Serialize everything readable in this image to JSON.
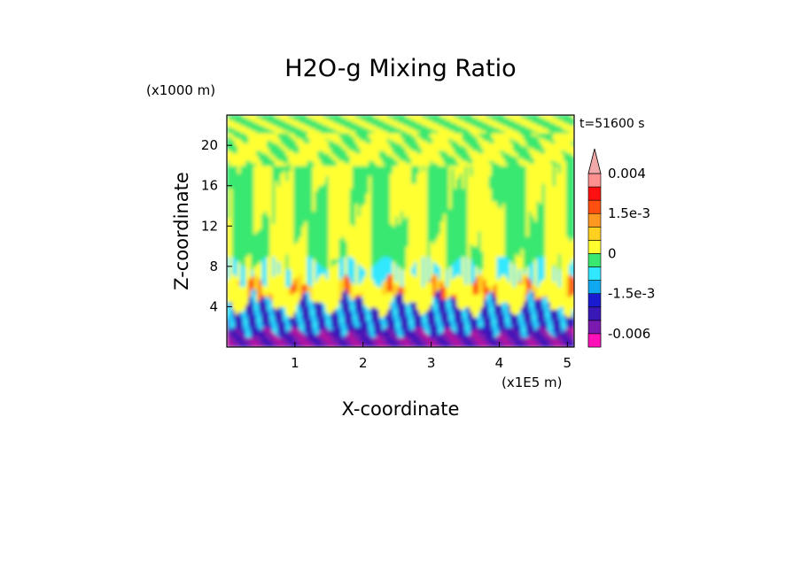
{
  "chart_data": {
    "type": "heatmap",
    "title": "H2O-g Mixing Ratio",
    "xlabel": "X-coordinate",
    "ylabel": "Z-coordinate",
    "x_unit": "(x1E5 m)",
    "y_unit": "(x1000 m)",
    "time_label": "t=51600 s",
    "x_ticks": [
      1,
      2,
      3,
      4,
      5
    ],
    "y_ticks": [
      4,
      8,
      12,
      16,
      20
    ],
    "xlim": [
      0,
      5.1
    ],
    "ylim": [
      0,
      23
    ],
    "colorbar": {
      "levels": [
        -0.008,
        -0.006,
        -0.004,
        -0.002,
        -0.0015,
        -0.001,
        -0.0005,
        0,
        0.0005,
        0.001,
        0.0015,
        0.002,
        0.003,
        0.004
      ],
      "colors": [
        "#ff10b8",
        "#b419a0",
        "#7a1ab0",
        "#3a18b8",
        "#1a1ad0",
        "#10a8f0",
        "#30e8ff",
        "#38e870",
        "#ffff30",
        "#ffd020",
        "#ff9820",
        "#ff5010",
        "#ff1010",
        "#ff9090",
        "#f0a8a8"
      ],
      "tick_labels": [
        {
          "value": 0.004,
          "label": "0.004"
        },
        {
          "value": 0.0015,
          "label": "1.5e-3"
        },
        {
          "value": 0,
          "label": "0"
        },
        {
          "value": -0.0015,
          "label": "-1.5e-3"
        },
        {
          "value": -0.006,
          "label": "-0.006"
        }
      ]
    },
    "field_description_bands": [
      {
        "z_range": [
          0,
          1.5
        ],
        "dominant_value": -0.005
      },
      {
        "z_range": [
          1.5,
          4.5
        ],
        "dominant_value": -0.002
      },
      {
        "z_range": [
          4.5,
          6.5
        ],
        "dominant_value": 0.0012
      },
      {
        "z_range": [
          6.5,
          8.5
        ],
        "dominant_value": -0.0007
      },
      {
        "z_range": [
          8.5,
          18
        ],
        "dominant_value": 0.0002
      },
      {
        "z_range": [
          18,
          23
        ],
        "dominant_value": 0.0003
      }
    ]
  }
}
